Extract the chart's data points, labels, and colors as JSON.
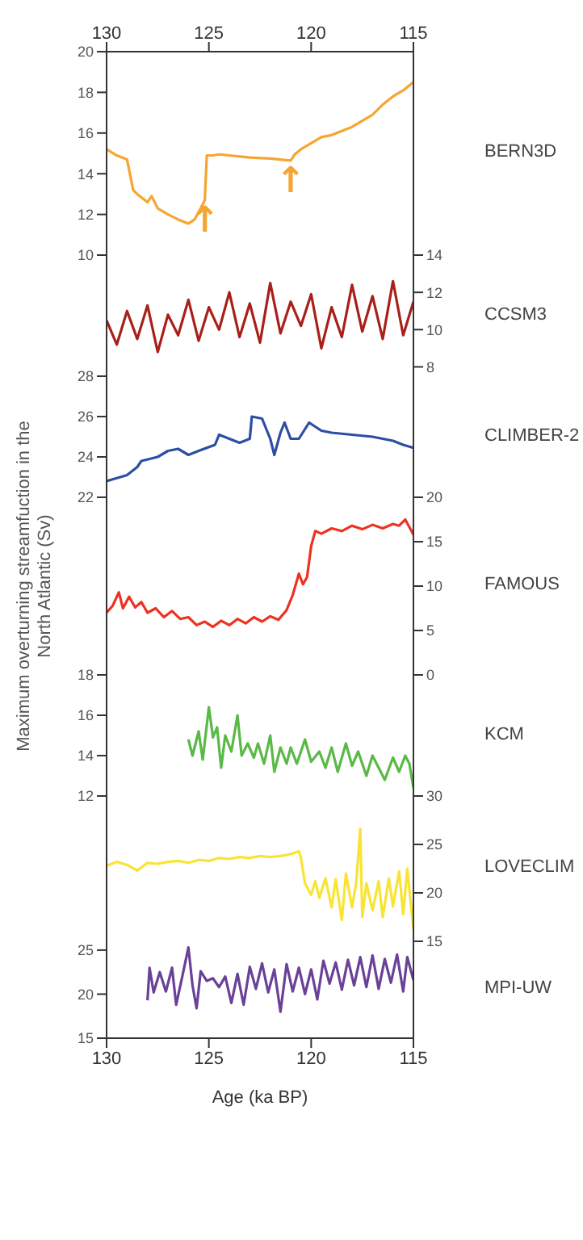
{
  "chart_data": [
    {
      "type": "line",
      "xlim": [
        130,
        115
      ],
      "xticks": [
        130,
        125,
        120,
        115
      ],
      "ylim": [
        10,
        20
      ],
      "yticks": [
        10,
        12,
        14,
        16,
        18,
        20
      ],
      "series": [
        {
          "name": "BERN3D",
          "color": "#f7a531",
          "x": [
            130,
            129.5,
            129,
            128.7,
            128.5,
            128,
            127.8,
            127.5,
            127,
            126.5,
            126,
            125.7,
            125.4,
            125.2,
            125.1,
            124.8,
            124.5,
            123,
            122,
            121,
            120.8,
            120.5,
            120,
            119.5,
            119,
            118,
            117,
            116.5,
            116,
            115.5,
            115
          ],
          "values": [
            15.2,
            14.9,
            14.7,
            13.2,
            13.0,
            12.6,
            12.9,
            12.3,
            12.0,
            11.75,
            11.55,
            11.75,
            12.3,
            12.7,
            14.9,
            14.9,
            14.95,
            14.8,
            14.75,
            14.65,
            14.95,
            15.2,
            15.5,
            15.8,
            15.9,
            16.3,
            16.9,
            17.4,
            17.8,
            18.1,
            18.5
          ]
        }
      ],
      "annotations": [
        {
          "text": "↑",
          "x": 125.2,
          "y": 12.7
        },
        {
          "text": "↑",
          "x": 121,
          "y": 14.65
        }
      ]
    },
    {
      "type": "line",
      "xlim": [
        130,
        115
      ],
      "y2lim": [
        7.5,
        14
      ],
      "y2ticks": [
        8,
        10,
        12,
        14
      ],
      "tick_labels": "y2",
      "series": [
        {
          "name": "CCSM3",
          "color": "#a8201a",
          "axis": "y2",
          "x": [
            130,
            129.5,
            129,
            128.5,
            128,
            127.5,
            127,
            126.5,
            126,
            125.5,
            125,
            124.5,
            124,
            123.5,
            123,
            122.5,
            122,
            121.5,
            121,
            120.5,
            120,
            119.5,
            119,
            118.5,
            118,
            117.5,
            117,
            116.5,
            116,
            115.5,
            115
          ],
          "values": [
            10.5,
            9.2,
            11,
            9.5,
            11.3,
            8.8,
            10.8,
            9.7,
            11.6,
            9.4,
            11.2,
            10,
            12,
            9.6,
            11.4,
            9.3,
            12.5,
            9.8,
            11.5,
            10.2,
            11.9,
            9,
            11.2,
            9.6,
            12.4,
            9.9,
            11.8,
            9.5,
            12.6,
            9.7,
            11.5
          ]
        }
      ]
    },
    {
      "type": "line",
      "xlim": [
        130,
        115
      ],
      "ylim": [
        22,
        28
      ],
      "yticks": [
        22,
        24,
        26,
        28
      ],
      "tick_labels": "y",
      "series": [
        {
          "name": "CLIMBER-2",
          "color": "#2d4ea3",
          "x": [
            130,
            129.5,
            129,
            128.5,
            128.3,
            127.5,
            127,
            126.5,
            126,
            125.5,
            124.7,
            124.5,
            124,
            123.5,
            123,
            122.9,
            122.4,
            122,
            121.8,
            121.5,
            121.3,
            121,
            120.6,
            120.1,
            119.5,
            119,
            118,
            117,
            116,
            115.5,
            115
          ],
          "values": [
            22.8,
            22.95,
            23.1,
            23.5,
            23.8,
            24.0,
            24.3,
            24.4,
            24.1,
            24.3,
            24.6,
            25.1,
            24.9,
            24.7,
            24.9,
            26.0,
            25.9,
            24.9,
            24.1,
            25.2,
            25.7,
            24.9,
            24.9,
            25.7,
            25.3,
            25.2,
            25.1,
            25.0,
            24.8,
            24.6,
            24.45
          ]
        }
      ]
    },
    {
      "type": "line",
      "xlim": [
        130,
        115
      ],
      "y2lim": [
        0,
        20
      ],
      "y2ticks": [
        0,
        5,
        10,
        15,
        20
      ],
      "tick_labels": "y2",
      "ylabel": "Maximum overturning streamfuction in the North Atlantic (Sv)",
      "series": [
        {
          "name": "FAMOUS",
          "color": "#ee3222",
          "axis": "y2",
          "x": [
            130,
            129.7,
            129.4,
            129.2,
            128.9,
            128.6,
            128.3,
            128,
            127.6,
            127.2,
            126.8,
            126.4,
            126,
            125.6,
            125.2,
            124.8,
            124.4,
            124,
            123.6,
            123.2,
            122.8,
            122.4,
            122,
            121.6,
            121.2,
            120.9,
            120.6,
            120.4,
            120.2,
            120,
            119.8,
            119.5,
            119,
            118.5,
            118,
            117.5,
            117,
            116.5,
            116,
            115.7,
            115.4,
            115
          ],
          "values": [
            7,
            7.8,
            9.3,
            7.5,
            8.8,
            7.6,
            8.2,
            7,
            7.5,
            6.5,
            7.2,
            6.3,
            6.5,
            5.6,
            6.0,
            5.4,
            6.1,
            5.6,
            6.3,
            5.8,
            6.5,
            6.0,
            6.6,
            6.2,
            7.3,
            9,
            11.4,
            10.2,
            11.0,
            14.5,
            16.2,
            15.9,
            16.5,
            16.2,
            16.8,
            16.4,
            16.9,
            16.5,
            17.0,
            16.8,
            17.5,
            15.8
          ]
        }
      ]
    },
    {
      "type": "line",
      "xlim": [
        130,
        115
      ],
      "ylim": [
        12,
        18
      ],
      "yticks": [
        12,
        14,
        16,
        18
      ],
      "tick_labels": "y",
      "series": [
        {
          "name": "KCM",
          "color": "#5ab947",
          "x": [
            126,
            125.8,
            125.5,
            125.3,
            125.0,
            124.8,
            124.6,
            124.4,
            124.2,
            123.9,
            123.6,
            123.4,
            123.1,
            122.8,
            122.6,
            122.3,
            122,
            121.8,
            121.5,
            121.2,
            121,
            120.7,
            120.3,
            120,
            119.6,
            119.3,
            119,
            118.7,
            118.3,
            118,
            117.7,
            117.3,
            117,
            116.7,
            116.4,
            116,
            115.7,
            115.4,
            115.2,
            115
          ],
          "values": [
            14.8,
            14.0,
            15.2,
            13.8,
            16.4,
            14.9,
            15.4,
            13.4,
            15.0,
            14.2,
            16.0,
            14.0,
            14.6,
            13.9,
            14.6,
            13.6,
            15.0,
            13.2,
            14.4,
            13.6,
            14.4,
            13.6,
            14.8,
            13.7,
            14.2,
            13.4,
            14.4,
            13.2,
            14.6,
            13.5,
            14.2,
            13.0,
            14.0,
            13.4,
            12.8,
            13.9,
            13.2,
            14.0,
            13.6,
            12.4
          ]
        }
      ]
    },
    {
      "type": "line",
      "xlim": [
        130,
        115
      ],
      "y2lim": [
        15,
        30
      ],
      "y2ticks": [
        15,
        20,
        25,
        30
      ],
      "tick_labels": "y2",
      "series": [
        {
          "name": "LOVECLIM",
          "color": "#f9e435",
          "axis": "y2",
          "x": [
            130,
            129.5,
            129,
            128.5,
            128,
            127.5,
            127,
            126.5,
            126,
            125.5,
            125,
            124.5,
            124,
            123.5,
            123,
            122.5,
            122,
            121.5,
            121,
            120.6,
            120.5,
            120.3,
            120,
            119.8,
            119.6,
            119.3,
            119,
            118.8,
            118.5,
            118.3,
            118,
            117.8,
            117.6,
            117.5,
            117.3,
            117,
            116.7,
            116.5,
            116.2,
            116,
            115.7,
            115.5,
            115.3,
            115
          ],
          "values": [
            22.8,
            23.2,
            22.9,
            22.3,
            23.1,
            23.0,
            23.2,
            23.3,
            23.1,
            23.4,
            23.3,
            23.6,
            23.5,
            23.7,
            23.6,
            23.8,
            23.7,
            23.8,
            24.0,
            24.3,
            23.6,
            21.0,
            19.8,
            21.2,
            19.5,
            21.5,
            18.5,
            21.4,
            17.2,
            22.0,
            18.5,
            21.0,
            26.6,
            17.5,
            21.0,
            18.2,
            21.2,
            17.5,
            21.5,
            18.6,
            22.2,
            17.8,
            22.5,
            16.2
          ]
        }
      ]
    },
    {
      "type": "line",
      "xlim": [
        130,
        115
      ],
      "xticks": [
        130,
        125,
        120,
        115
      ],
      "xlabel": "Age (ka BP)",
      "ylim": [
        15,
        26
      ],
      "yticks": [
        15,
        20,
        25
      ],
      "series": [
        {
          "name": "MPI-UW",
          "color": "#6a4198",
          "x": [
            128,
            127.9,
            127.7,
            127.4,
            127.1,
            126.8,
            126.6,
            126.3,
            126,
            125.8,
            125.6,
            125.4,
            125.1,
            124.8,
            124.5,
            124.2,
            123.9,
            123.6,
            123.3,
            123,
            122.7,
            122.4,
            122.1,
            121.8,
            121.5,
            121.2,
            120.9,
            120.6,
            120.3,
            120,
            119.7,
            119.4,
            119.1,
            118.8,
            118.5,
            118.2,
            117.9,
            117.6,
            117.3,
            117,
            116.7,
            116.4,
            116.1,
            115.8,
            115.5,
            115.3,
            115
          ],
          "values": [
            19.3,
            23.0,
            20.2,
            22.5,
            20.3,
            23.0,
            18.8,
            22.0,
            25.3,
            21.0,
            18.4,
            22.6,
            21.5,
            21.8,
            20.8,
            22.0,
            19.0,
            22.3,
            18.8,
            23.1,
            20.6,
            23.5,
            20.2,
            22.8,
            18.0,
            23.4,
            20.3,
            23.0,
            20.0,
            22.8,
            19.4,
            23.8,
            21.2,
            23.6,
            20.5,
            23.9,
            21.0,
            24.2,
            20.8,
            24.4,
            20.6,
            24.0,
            21.3,
            24.5,
            20.3,
            24.2,
            21.6
          ]
        }
      ]
    }
  ]
}
